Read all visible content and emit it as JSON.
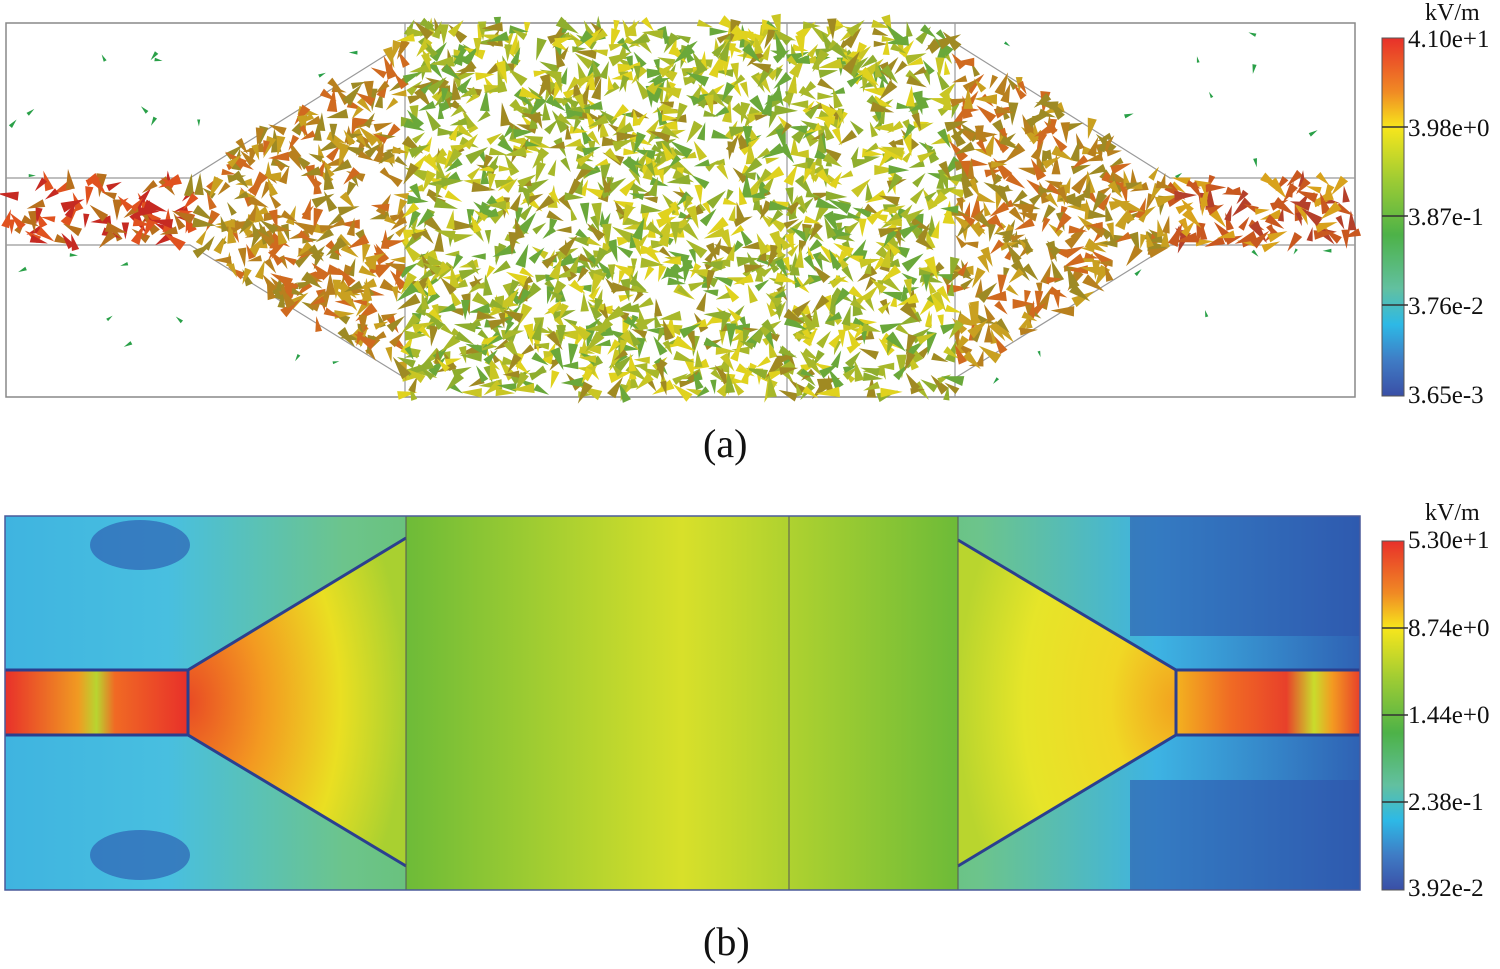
{
  "panel_a": {
    "caption": "(a)",
    "colorbar": {
      "unit": "kV/m",
      "ticks": [
        "4.10e+1",
        "3.98e+0",
        "3.87e-1",
        "3.76e-2",
        "3.65e-3"
      ],
      "colors": [
        "#e8302a",
        "#f39a21",
        "#f7e61c",
        "#7cc13c",
        "#4db248",
        "#2db9e6",
        "#3a4fa6"
      ]
    }
  },
  "panel_b": {
    "caption": "(b)",
    "colorbar": {
      "unit": "kV/m",
      "ticks": [
        "5.30e+1",
        "8.74e+0",
        "1.44e+0",
        "2.38e-1",
        "3.92e-2"
      ],
      "colors": [
        "#e8302a",
        "#f39a21",
        "#f7e61c",
        "#7cc13c",
        "#4db248",
        "#2db9e6",
        "#3a4fa6"
      ]
    }
  }
}
